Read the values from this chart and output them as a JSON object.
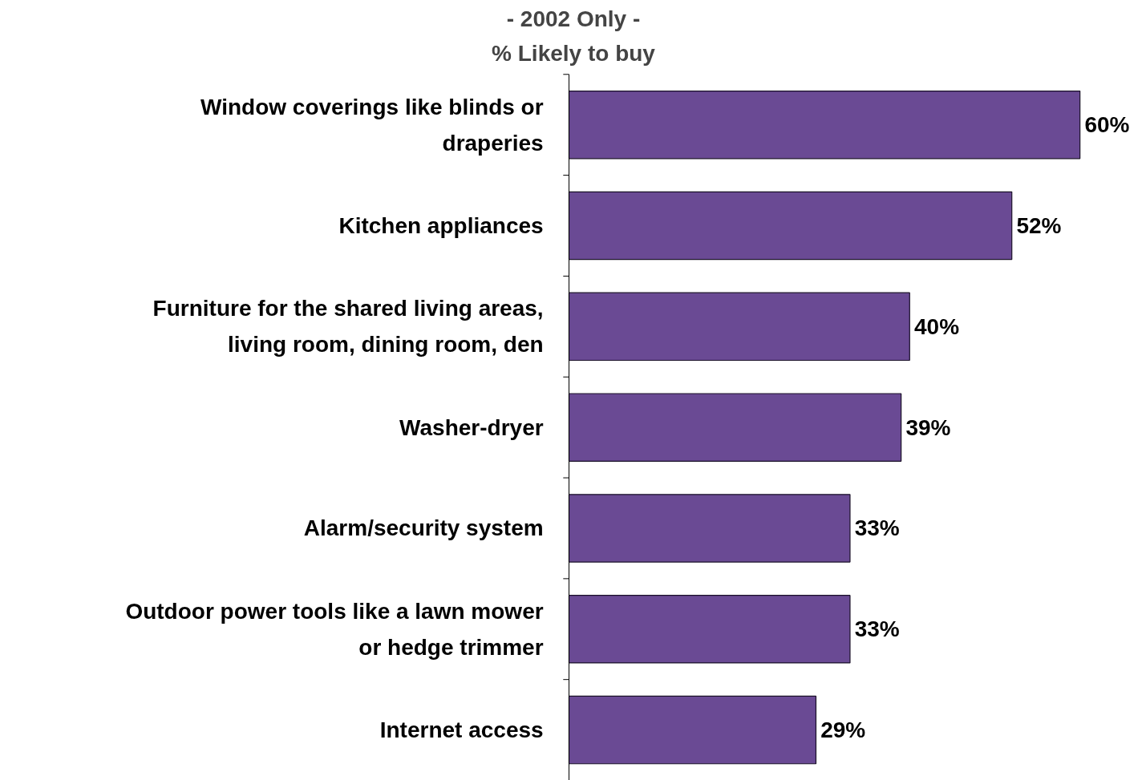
{
  "chart_data": {
    "type": "bar",
    "orientation": "horizontal",
    "title": "- 2002 Only -",
    "subtitle": "% Likely to buy",
    "categories": [
      "Window coverings like blinds or draperies",
      "Kitchen appliances",
      "Furniture for the shared living areas, living room, dining room, den",
      "Washer-dryer",
      "Alarm/security system",
      "Outdoor power tools like a lawn mower or hedge trimmer",
      "Internet access"
    ],
    "values": [
      60,
      52,
      40,
      39,
      33,
      33,
      29
    ],
    "value_labels": [
      "60%",
      "52%",
      "40%",
      "39%",
      "33%",
      "33%",
      "29%"
    ],
    "color": "#6a4a94"
  }
}
